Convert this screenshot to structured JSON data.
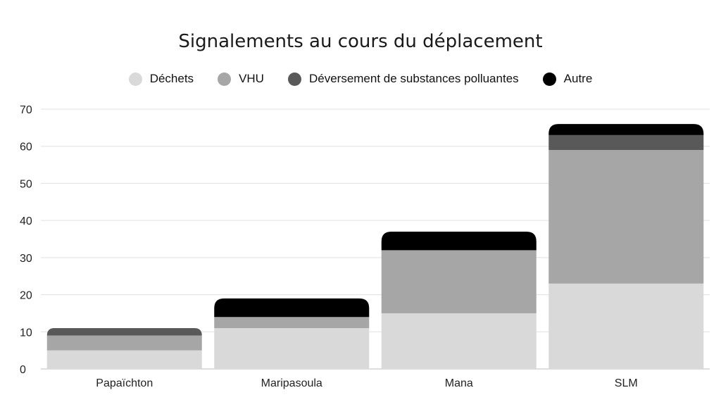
{
  "chart_data": {
    "type": "bar",
    "stacked": true,
    "title": "Signalements au cours du déplacement",
    "xlabel": "",
    "ylabel": "",
    "categories": [
      "Papaïchton",
      "Maripasoula",
      "Mana",
      "SLM"
    ],
    "series": [
      {
        "name": "Déchets",
        "color": "#d9d9d9",
        "values": [
          5,
          11,
          15,
          23
        ]
      },
      {
        "name": "VHU",
        "color": "#a6a6a6",
        "values": [
          4,
          3,
          17,
          36
        ]
      },
      {
        "name": "Déversement de substances polluantes",
        "color": "#595959",
        "values": [
          2,
          0,
          0,
          4
        ]
      },
      {
        "name": "Autre",
        "color": "#000000",
        "values": [
          0,
          5,
          5,
          3
        ]
      }
    ],
    "ylim": [
      0,
      70
    ],
    "yticks": [
      0,
      10,
      20,
      30,
      40,
      50,
      60,
      70
    ],
    "grid": true,
    "legend": "top-center"
  }
}
